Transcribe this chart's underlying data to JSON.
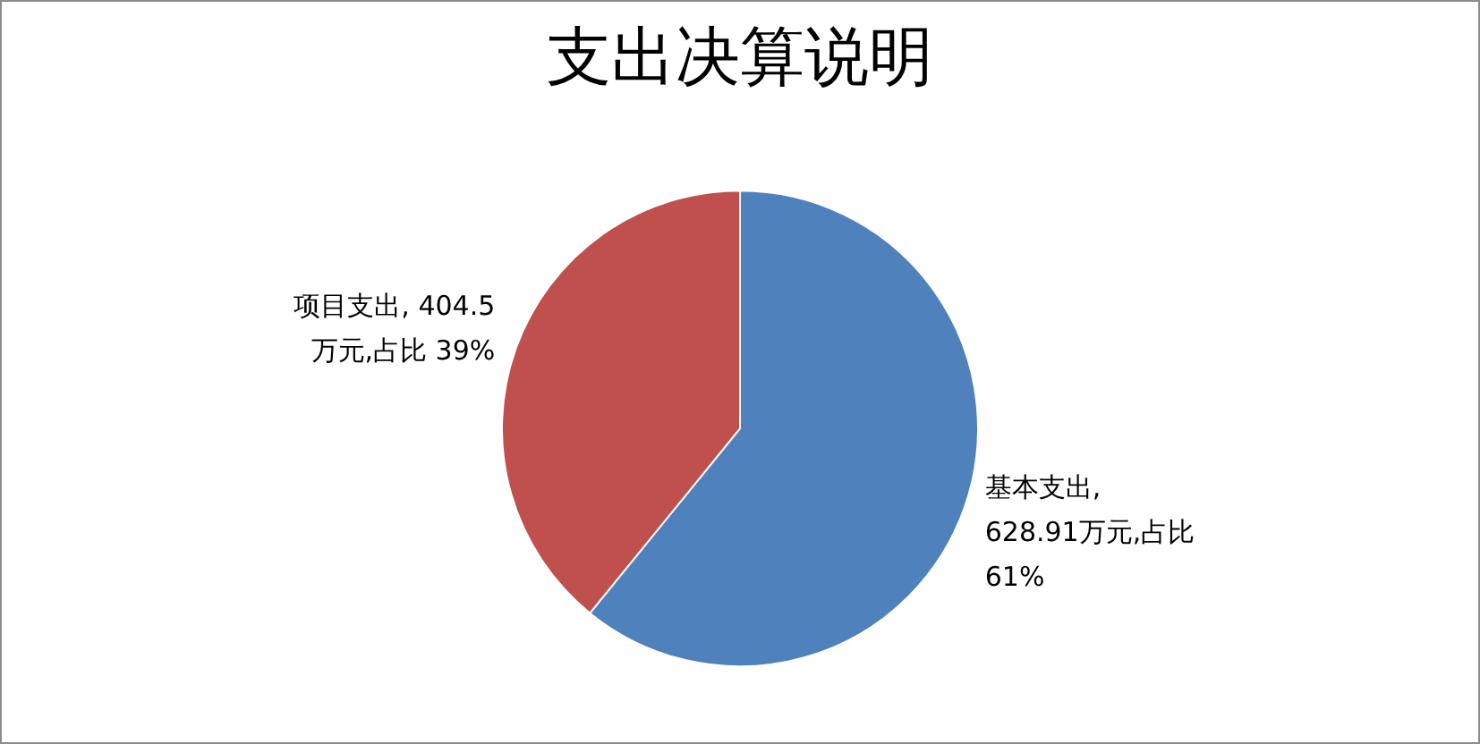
{
  "chart_data": {
    "type": "pie",
    "title": "支出决算说明",
    "categories": [
      "基本支出",
      "项目支出"
    ],
    "values": [
      628.91,
      404.5
    ],
    "colors": [
      "#4f81bd",
      "#c0504d"
    ],
    "value_labels": [
      ", 628.91万元,占比 61%",
      ", 404.5 万元,占比 39%"
    ],
    "legend": false
  }
}
